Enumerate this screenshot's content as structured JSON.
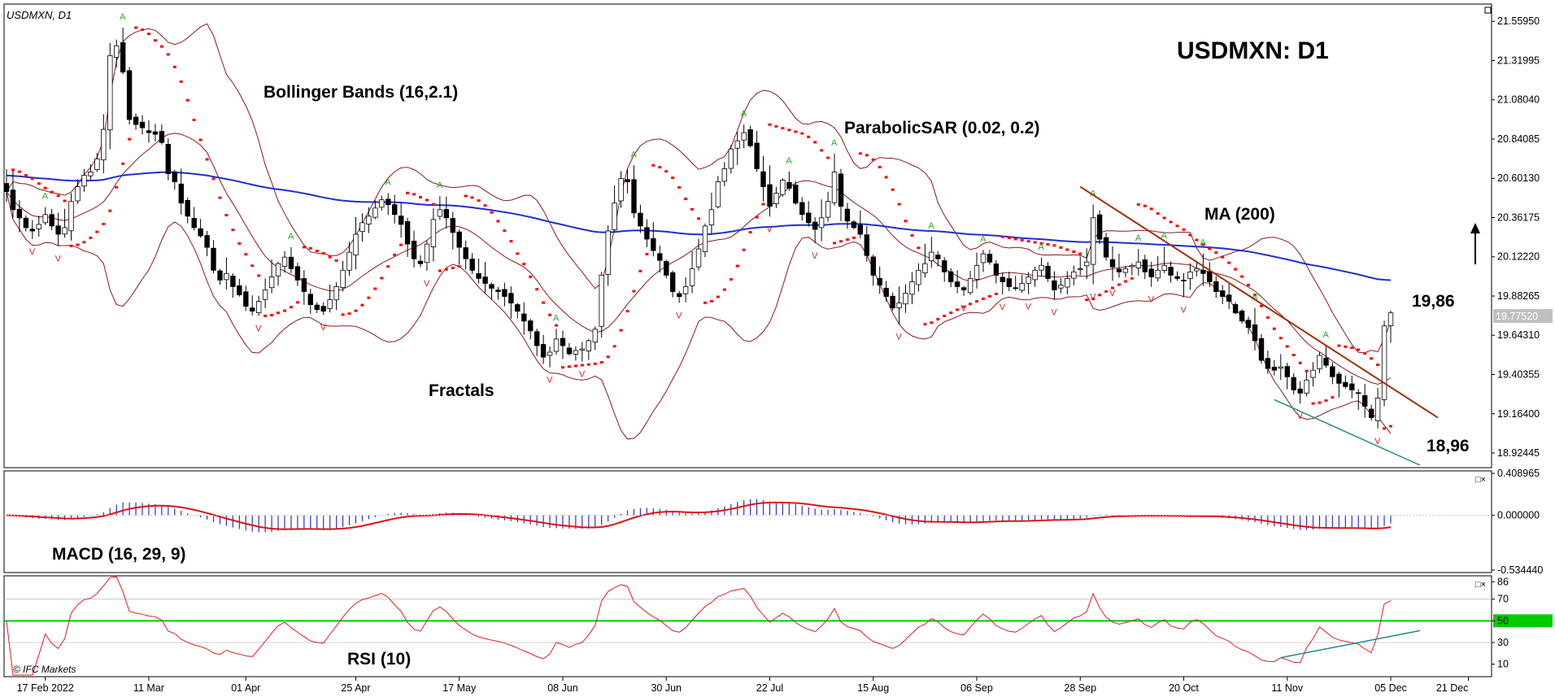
{
  "header": {
    "symbol_tf": "USDMXN, D1",
    "big_title": "USDMXN: D1",
    "copyright": "© IFC Markets"
  },
  "annotations": {
    "bollinger": "Bollinger Bands (16,2.1)",
    "psar": "ParabolicSAR (0.02, 0.2)",
    "ma": "MA (200)",
    "fractals": "Fractals",
    "macd": "MACD (16, 29, 9)",
    "rsi": "RSI (10)",
    "level_high": "19,86",
    "level_low": "18,96"
  },
  "colors": {
    "candle_body": "#000000",
    "bollinger": "#8b1a1a",
    "ma200": "#1f2fd0",
    "psar": "#ff0000",
    "fractal_up": "#22aa22",
    "fractal_down": "#dd2222",
    "trend_down": "#a0300a",
    "trend_support": "#1f8a8a",
    "macd_hist": "#3030d0",
    "macd_signal": "#e01010",
    "rsi_line": "#e02020",
    "rsi_mid": "#00cc00",
    "rsi_support": "#1f8a8a",
    "current_price_label_bg": "#c0c0c0"
  },
  "chart_data": [
    {
      "type": "candlestick",
      "panel": "price",
      "ylim": [
        18.85,
        21.65
      ],
      "y_ticks": [
        "21.55950",
        "21.31995",
        "21.08040",
        "20.84085",
        "20.60130",
        "20.36175",
        "20.12220",
        "19.88265",
        "19.64310",
        "19.40355",
        "19.16400",
        "18.92445"
      ],
      "y_tick_values": [
        21.5595,
        21.31995,
        21.0804,
        20.84085,
        20.6013,
        20.36175,
        20.1222,
        19.88265,
        19.6431,
        19.40355,
        19.164,
        18.92445
      ],
      "current_price": "19.77520",
      "current_price_value": 19.7752,
      "x_ticks": [
        "17 Feb 2022",
        "11 Mar",
        "01 Apr",
        "25 Apr",
        "17 May",
        "08 Jun",
        "30 Jun",
        "22 Jul",
        "15 Aug",
        "06 Sep",
        "28 Sep",
        "20 Oct",
        "11 Nov",
        "05 Dec",
        "21 Dec"
      ],
      "x_tick_index": [
        6,
        22,
        37,
        54,
        70,
        86,
        102,
        118,
        134,
        150,
        166,
        182,
        198,
        214,
        226
      ],
      "closes": [
        20.52,
        20.41,
        20.36,
        20.3,
        20.28,
        20.32,
        20.38,
        20.31,
        20.26,
        20.3,
        20.46,
        20.55,
        20.62,
        20.64,
        20.72,
        20.9,
        21.35,
        21.41,
        21.25,
        20.96,
        20.93,
        20.91,
        20.88,
        20.87,
        20.82,
        20.63,
        20.58,
        20.45,
        20.37,
        20.3,
        20.25,
        20.18,
        20.04,
        19.98,
        20.02,
        19.94,
        19.89,
        19.82,
        19.79,
        19.85,
        19.92,
        20.0,
        20.08,
        20.12,
        20.05,
        19.98,
        19.91,
        19.83,
        19.8,
        19.79,
        19.86,
        19.94,
        20.04,
        20.15,
        20.26,
        20.33,
        20.37,
        20.42,
        20.47,
        20.44,
        20.38,
        20.32,
        20.2,
        20.11,
        20.08,
        20.2,
        20.35,
        20.41,
        20.36,
        20.27,
        20.18,
        20.11,
        20.04,
        19.99,
        19.96,
        19.93,
        19.91,
        19.88,
        19.84,
        19.79,
        19.73,
        19.67,
        19.58,
        19.51,
        19.54,
        19.62,
        19.58,
        19.53,
        19.55,
        19.56,
        19.61,
        19.68,
        20.01,
        20.28,
        20.45,
        20.6,
        20.58,
        20.39,
        20.31,
        20.23,
        20.16,
        20.1,
        20.01,
        19.91,
        19.88,
        19.94,
        20.05,
        20.17,
        20.31,
        20.41,
        20.58,
        20.66,
        20.78,
        20.83,
        20.88,
        20.8,
        20.66,
        20.55,
        20.43,
        20.51,
        20.59,
        20.54,
        20.45,
        20.38,
        20.33,
        20.29,
        20.36,
        20.46,
        20.64,
        20.43,
        20.34,
        20.3,
        20.26,
        20.13,
        20.01,
        19.95,
        19.88,
        19.81,
        19.84,
        19.9,
        19.97,
        20.04,
        20.08,
        20.15,
        20.11,
        20.03,
        19.97,
        19.94,
        19.92,
        19.99,
        20.07,
        20.14,
        20.09,
        20.01,
        19.97,
        19.94,
        19.93,
        19.96,
        20.0,
        20.04,
        20.07,
        19.99,
        19.92,
        19.95,
        19.99,
        20.03,
        20.05,
        20.09,
        20.36,
        20.23,
        20.12,
        20.06,
        20.03,
        20.05,
        20.07,
        20.09,
        20.03,
        20.0,
        20.04,
        20.07,
        20.01,
        19.99,
        19.98,
        20.03,
        20.05,
        20.02,
        19.97,
        19.91,
        19.88,
        19.85,
        19.78,
        19.73,
        19.69,
        19.61,
        19.49,
        19.44,
        19.43,
        19.45,
        19.39,
        19.31,
        19.29,
        19.37,
        19.43,
        19.52,
        19.46,
        19.39,
        19.35,
        19.33,
        19.31,
        19.29,
        19.21,
        19.14,
        19.26,
        19.7,
        19.78
      ]
    },
    {
      "type": "bar+line",
      "panel": "MACD",
      "name": "MACD (16, 29, 9)",
      "ylim": [
        -0.53444,
        0.408965
      ],
      "y_ticks": [
        "0.408965",
        "0.000000",
        "-0.534440"
      ],
      "y_tick_values": [
        0.408965,
        0.0,
        -0.53444
      ]
    },
    {
      "type": "line",
      "panel": "RSI",
      "name": "RSI (10)",
      "ylim": [
        0,
        90
      ],
      "y_ticks": [
        "86",
        "70",
        "50",
        "30",
        "10"
      ],
      "y_tick_values": [
        86,
        70,
        50,
        30,
        10
      ],
      "midline": 50
    }
  ]
}
